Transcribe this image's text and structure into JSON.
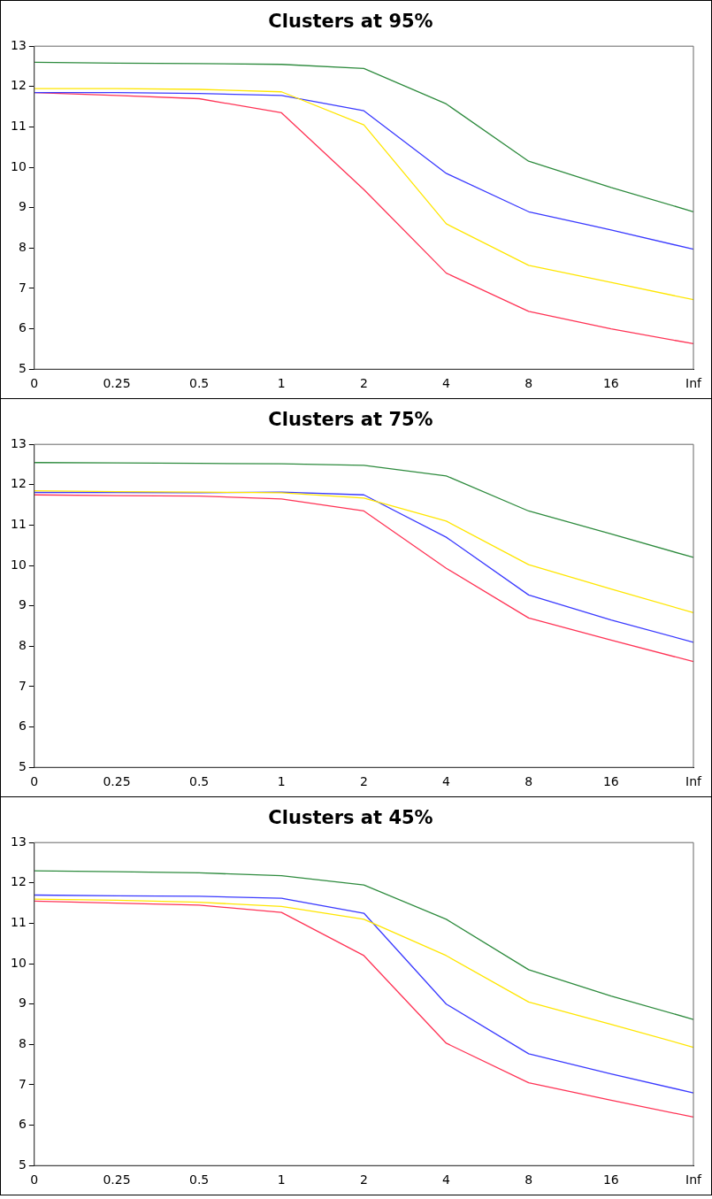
{
  "chart_data": [
    {
      "type": "line",
      "title": "Clusters at 95%",
      "categories": [
        "0",
        "0.25",
        "0.5",
        "1",
        "2",
        "4",
        "8",
        "16",
        "Inf"
      ],
      "ylim": [
        5,
        13
      ],
      "yticks": [
        5,
        6,
        7,
        8,
        9,
        10,
        11,
        12,
        13
      ],
      "grid": false,
      "legend": false,
      "marker": "none",
      "series": [
        {
          "color": "#2e8b3e",
          "values": [
            12.6,
            12.58,
            12.57,
            12.55,
            12.45,
            11.57,
            10.15,
            9.5,
            8.9
          ]
        },
        {
          "color": "#ffe600",
          "values": [
            11.95,
            11.95,
            11.93,
            11.87,
            11.05,
            8.6,
            7.57,
            7.15,
            6.72
          ]
        },
        {
          "color": "#3a3aff",
          "values": [
            11.85,
            11.85,
            11.83,
            11.78,
            11.4,
            9.85,
            8.9,
            8.45,
            7.97
          ]
        },
        {
          "color": "#ff3355",
          "values": [
            11.85,
            11.78,
            11.7,
            11.35,
            9.45,
            7.38,
            6.43,
            6.0,
            5.63
          ]
        }
      ]
    },
    {
      "type": "line",
      "title": "Clusters at 75%",
      "categories": [
        "0",
        "0.25",
        "0.5",
        "1",
        "2",
        "4",
        "8",
        "16",
        "Inf"
      ],
      "ylim": [
        5,
        13
      ],
      "yticks": [
        5,
        6,
        7,
        8,
        9,
        10,
        11,
        12,
        13
      ],
      "grid": false,
      "legend": false,
      "marker": "none",
      "series": [
        {
          "color": "#2e8b3e",
          "values": [
            12.55,
            12.54,
            12.53,
            12.52,
            12.48,
            12.22,
            11.35,
            10.78,
            10.2
          ]
        },
        {
          "color": "#ffe600",
          "values": [
            11.85,
            11.83,
            11.82,
            11.8,
            11.67,
            11.1,
            10.02,
            9.42,
            8.83
          ]
        },
        {
          "color": "#3a3aff",
          "values": [
            11.81,
            11.81,
            11.8,
            11.82,
            11.75,
            10.7,
            9.27,
            8.65,
            8.1
          ]
        },
        {
          "color": "#ff3355",
          "values": [
            11.75,
            11.73,
            11.72,
            11.65,
            11.35,
            9.93,
            8.7,
            8.15,
            7.62
          ]
        }
      ]
    },
    {
      "type": "line",
      "title": "Clusters at 45%",
      "categories": [
        "0",
        "0.25",
        "0.5",
        "1",
        "2",
        "4",
        "8",
        "16",
        "Inf"
      ],
      "ylim": [
        5,
        13
      ],
      "yticks": [
        5,
        6,
        7,
        8,
        9,
        10,
        11,
        12,
        13
      ],
      "grid": false,
      "legend": false,
      "marker": "none",
      "series": [
        {
          "color": "#2e8b3e",
          "values": [
            12.3,
            12.28,
            12.25,
            12.18,
            11.95,
            11.1,
            9.85,
            9.2,
            8.62
          ]
        },
        {
          "color": "#ffe600",
          "values": [
            11.6,
            11.57,
            11.52,
            11.42,
            11.1,
            10.2,
            9.05,
            8.5,
            7.93
          ]
        },
        {
          "color": "#3a3aff",
          "values": [
            11.7,
            11.68,
            11.67,
            11.62,
            11.25,
            9.0,
            7.77,
            7.27,
            6.8
          ]
        },
        {
          "color": "#ff3355",
          "values": [
            11.55,
            11.5,
            11.45,
            11.27,
            10.2,
            8.03,
            7.05,
            6.62,
            6.2
          ]
        }
      ]
    }
  ]
}
